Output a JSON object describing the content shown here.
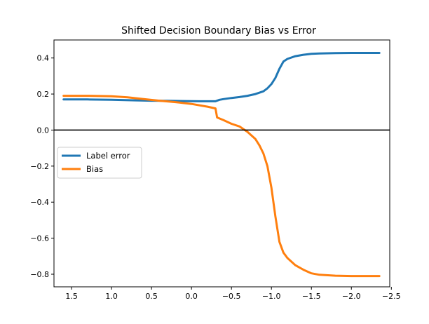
{
  "chart_data": {
    "type": "line",
    "title": "Shifted Decision Boundary Bias vs Error",
    "xlabel": "",
    "ylabel": "",
    "xlim": [
      1.72,
      -2.48
    ],
    "ylim": [
      -0.87,
      0.5
    ],
    "x_inverted": true,
    "xticks": [
      1.5,
      1.0,
      0.5,
      0.0,
      -0.5,
      -1.0,
      -1.5,
      -2.0,
      -2.5
    ],
    "xtick_labels": [
      "1.5",
      "1.0",
      "0.5",
      "0.0",
      "−0.5",
      "−1.0",
      "−1.5",
      "−2.0",
      "−2.5"
    ],
    "yticks": [
      0.4,
      0.2,
      0.0,
      -0.2,
      -0.4,
      -0.6,
      -0.8
    ],
    "ytick_labels": [
      "0.4",
      "0.2",
      "0.0",
      "−0.2",
      "−0.4",
      "−0.6",
      "−0.8"
    ],
    "grid": false,
    "legend_position": "center-left",
    "reference_line": {
      "y": 0.0,
      "color": "#000000"
    },
    "series": [
      {
        "name": "Label error",
        "color": "#1f77b4",
        "x": [
          1.6,
          1.3,
          1.0,
          0.7,
          0.5,
          0.3,
          0.1,
          -0.1,
          -0.3,
          -0.35,
          -0.4,
          -0.5,
          -0.6,
          -0.7,
          -0.8,
          -0.9,
          -0.95,
          -1.0,
          -1.05,
          -1.1,
          -1.15,
          -1.2,
          -1.3,
          -1.4,
          -1.5,
          -1.6,
          -1.8,
          -2.0,
          -2.2,
          -2.35
        ],
        "y": [
          0.17,
          0.17,
          0.168,
          0.165,
          0.163,
          0.162,
          0.161,
          0.16,
          0.16,
          0.168,
          0.172,
          0.178,
          0.183,
          0.19,
          0.2,
          0.215,
          0.232,
          0.255,
          0.29,
          0.34,
          0.38,
          0.395,
          0.41,
          0.418,
          0.423,
          0.425,
          0.427,
          0.428,
          0.428,
          0.428
        ]
      },
      {
        "name": "Bias",
        "color": "#ff7f0e",
        "x": [
          1.6,
          1.3,
          1.0,
          0.8,
          0.6,
          0.4,
          0.2,
          0.0,
          -0.2,
          -0.3,
          -0.32,
          -0.4,
          -0.5,
          -0.6,
          -0.7,
          -0.8,
          -0.85,
          -0.9,
          -0.95,
          -1.0,
          -1.05,
          -1.1,
          -1.15,
          -1.2,
          -1.3,
          -1.4,
          -1.5,
          -1.6,
          -1.8,
          -2.0,
          -2.2,
          -2.35
        ],
        "y": [
          0.19,
          0.19,
          0.188,
          0.182,
          0.172,
          0.163,
          0.155,
          0.145,
          0.13,
          0.12,
          0.07,
          0.055,
          0.035,
          0.02,
          -0.01,
          -0.05,
          -0.085,
          -0.13,
          -0.2,
          -0.32,
          -0.48,
          -0.62,
          -0.68,
          -0.71,
          -0.75,
          -0.775,
          -0.795,
          -0.803,
          -0.808,
          -0.81,
          -0.81,
          -0.81
        ]
      }
    ]
  }
}
